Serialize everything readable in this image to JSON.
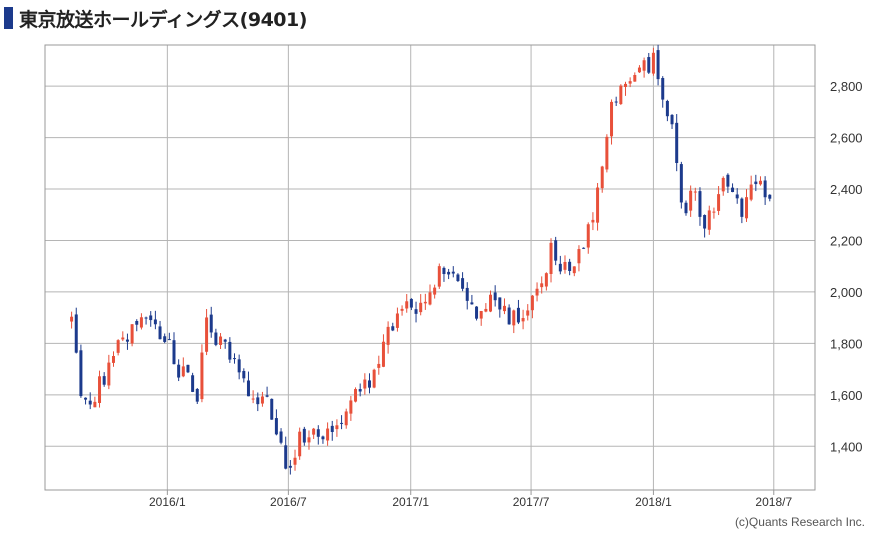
{
  "page": {
    "title": "東京放送ホールディングス(9401)",
    "credit": "(c)Quants Research Inc."
  },
  "colors": {
    "up": "#e8503a",
    "down": "#1c3a8c",
    "grid": "#b5b5b5",
    "frame": "#999999"
  },
  "chart_data": {
    "type": "candlestick",
    "title": "東京放送ホールディングス(9401)",
    "ylim": [
      1230,
      2960
    ],
    "y_ticks": [
      1400,
      1600,
      1800,
      2000,
      2200,
      2400,
      2600,
      2800
    ],
    "y_tick_labels": [
      "1,400",
      "1,600",
      "1,800",
      "2,000",
      "2,200",
      "2,400",
      "2,600",
      "2,800"
    ],
    "x_ticks": [
      "2016/1",
      "2016/7",
      "2017/1",
      "2017/7",
      "2018/1",
      "2018/7"
    ],
    "x_range": [
      "2015/7",
      "2018/9"
    ],
    "grid": true,
    "series_close": [
      [
        "2015-08-10",
        1880
      ],
      [
        "2015-08-24",
        1620
      ],
      [
        "2015-09-07",
        1560
      ],
      [
        "2015-09-21",
        1640
      ],
      [
        "2015-10-05",
        1700
      ],
      [
        "2015-10-19",
        1790
      ],
      [
        "2015-11-02",
        1840
      ],
      [
        "2015-11-16",
        1890
      ],
      [
        "2015-12-01",
        1900
      ],
      [
        "2015-12-15",
        1860
      ],
      [
        "2016-01-04",
        1800
      ],
      [
        "2016-01-18",
        1700
      ],
      [
        "2016-02-01",
        1660
      ],
      [
        "2016-02-15",
        1600
      ],
      [
        "2016-03-01",
        1900
      ],
      [
        "2016-03-15",
        1820
      ],
      [
        "2016-04-01",
        1780
      ],
      [
        "2016-04-15",
        1700
      ],
      [
        "2016-05-01",
        1620
      ],
      [
        "2016-05-15",
        1580
      ],
      [
        "2016-06-01",
        1560
      ],
      [
        "2016-06-15",
        1450
      ],
      [
        "2016-07-01",
        1300
      ],
      [
        "2016-07-15",
        1420
      ],
      [
        "2016-08-01",
        1460
      ],
      [
        "2016-08-15",
        1430
      ],
      [
        "2016-09-01",
        1460
      ],
      [
        "2016-09-15",
        1450
      ],
      [
        "2016-10-01",
        1560
      ],
      [
        "2016-10-15",
        1620
      ],
      [
        "2016-11-01",
        1650
      ],
      [
        "2016-11-15",
        1740
      ],
      [
        "2016-12-01",
        1870
      ],
      [
        "2016-12-15",
        1900
      ],
      [
        "2017-01-04",
        1960
      ],
      [
        "2017-01-18",
        1920
      ],
      [
        "2017-02-01",
        2000
      ],
      [
        "2017-02-15",
        2080
      ],
      [
        "2017-03-01",
        2080
      ],
      [
        "2017-03-15",
        2040
      ],
      [
        "2017-04-01",
        1960
      ],
      [
        "2017-04-15",
        1900
      ],
      [
        "2017-05-01",
        2020
      ],
      [
        "2017-05-15",
        1940
      ],
      [
        "2017-06-01",
        1900
      ],
      [
        "2017-06-15",
        1880
      ],
      [
        "2017-07-01",
        1950
      ],
      [
        "2017-07-15",
        2000
      ],
      [
        "2017-08-01",
        2180
      ],
      [
        "2017-08-15",
        2100
      ],
      [
        "2017-09-01",
        2100
      ],
      [
        "2017-09-15",
        2150
      ],
      [
        "2017-10-01",
        2300
      ],
      [
        "2017-10-15",
        2500
      ],
      [
        "2017-11-01",
        2750
      ],
      [
        "2017-11-15",
        2800
      ],
      [
        "2017-12-01",
        2850
      ],
      [
        "2017-12-15",
        2870
      ],
      [
        "2018-01-04",
        2900
      ],
      [
        "2018-01-18",
        2720
      ],
      [
        "2018-02-01",
        2600
      ],
      [
        "2018-02-15",
        2300
      ],
      [
        "2018-03-01",
        2400
      ],
      [
        "2018-03-15",
        2260
      ],
      [
        "2018-04-01",
        2300
      ],
      [
        "2018-04-15",
        2420
      ],
      [
        "2018-05-01",
        2380
      ],
      [
        "2018-05-15",
        2320
      ],
      [
        "2018-06-01",
        2450
      ],
      [
        "2018-06-15",
        2420
      ],
      [
        "2018-07-01",
        2330
      ]
    ]
  }
}
